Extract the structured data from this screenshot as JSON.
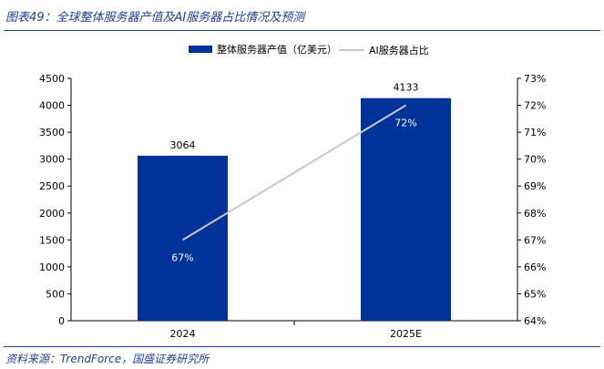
{
  "figure": {
    "title": "图表49：全球整体服务器产值及AI服务器占比情况及预测",
    "source": "资料来源：TrendForce，国盛证券研究所"
  },
  "colors": {
    "bar": "#003399",
    "line": "#c8c8c8",
    "accent": "#1f3f8f"
  },
  "chart_data": {
    "type": "bar",
    "categories": [
      "2024",
      "2025E"
    ],
    "series": [
      {
        "name": "整体服务器产值（亿美元）",
        "type": "bar",
        "axis": "left",
        "values": [
          3064,
          4133
        ]
      },
      {
        "name": "AI服务器占比",
        "type": "line",
        "axis": "right",
        "values": [
          67,
          72
        ]
      }
    ],
    "bar_labels": [
      "3064",
      "4133"
    ],
    "line_labels": [
      "67%",
      "72%"
    ],
    "y_left": {
      "min": 0,
      "max": 4500,
      "step": 500,
      "ticks": [
        "0",
        "500",
        "1000",
        "1500",
        "2000",
        "2500",
        "3000",
        "3500",
        "4000",
        "4500"
      ]
    },
    "y_right": {
      "min": 64,
      "max": 73,
      "step": 1,
      "ticks": [
        "64%",
        "65%",
        "66%",
        "67%",
        "68%",
        "69%",
        "70%",
        "71%",
        "72%",
        "73%"
      ]
    },
    "grid": false,
    "legend_position": "top-center"
  }
}
